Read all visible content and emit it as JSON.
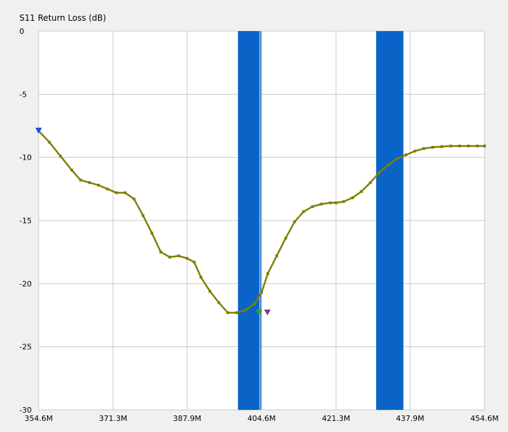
{
  "chart_data": {
    "type": "line",
    "title": "S11 Return Loss (dB)",
    "xlabel": "",
    "ylabel": "",
    "xlim": [
      354.6,
      454.6
    ],
    "ylim": [
      -30,
      0
    ],
    "x_ticks": [
      354.6,
      371.3,
      387.9,
      404.6,
      421.3,
      437.9,
      454.6
    ],
    "x_tick_labels": [
      "354.6M",
      "371.3M",
      "387.9M",
      "404.6M",
      "421.3M",
      "437.9M",
      "454.6M"
    ],
    "y_ticks": [
      0,
      -5,
      -10,
      -15,
      -20,
      -25,
      -30
    ],
    "y_tick_labels": [
      "0",
      "-5",
      "-10",
      "-15",
      "-20",
      "-25",
      "-30"
    ],
    "grid": true,
    "bands": [
      {
        "from": 399.3,
        "to": 404.5,
        "color": "#0a64c8"
      },
      {
        "from": 405.3,
        "to": 404.6,
        "color": "#0a64c8"
      },
      {
        "from": 430.3,
        "to": 436.4,
        "color": "#0a64c8"
      }
    ],
    "band_ranges": [
      [
        399.3,
        404.5
      ],
      [
        430.3,
        436.4
      ]
    ],
    "series": [
      {
        "color": "#7f7f00",
        "x": [
          354.6,
          357.0,
          359.5,
          362.0,
          364.0,
          366.0,
          368.0,
          370.0,
          372.0,
          374.0,
          376.0,
          378.0,
          380.0,
          382.0,
          384.0,
          386.0,
          387.9,
          389.5,
          391.0,
          393.0,
          395.0,
          397.0,
          399.0,
          401.0,
          403.0,
          404.6,
          406.0,
          408.0,
          410.0,
          412.0,
          414.0,
          416.0,
          418.0,
          420.0,
          421.3,
          423.0,
          425.0,
          427.0,
          429.0,
          431.0,
          433.0,
          435.0,
          437.0,
          439.0,
          441.0,
          443.0,
          445.0,
          447.0,
          449.0,
          451.0,
          453.0,
          454.6
        ],
        "y": [
          -7.9,
          -8.8,
          -9.9,
          -11.0,
          -11.8,
          -12.0,
          -12.2,
          -12.5,
          -12.8,
          -12.8,
          -13.3,
          -14.6,
          -16.0,
          -17.5,
          -17.9,
          -17.8,
          -18.0,
          -18.3,
          -19.5,
          -20.6,
          -21.5,
          -22.3,
          -22.3,
          -22.1,
          -21.6,
          -20.7,
          -19.2,
          -17.8,
          -16.4,
          -15.1,
          -14.3,
          -13.9,
          -13.7,
          -13.6,
          -13.6,
          -13.5,
          -13.2,
          -12.7,
          -12.0,
          -11.2,
          -10.6,
          -10.1,
          -9.8,
          -9.5,
          -9.3,
          -9.2,
          -9.15,
          -9.1,
          -9.1,
          -9.1,
          -9.1,
          -9.1
        ]
      }
    ],
    "markers": [
      {
        "x": 354.6,
        "y": -7.9,
        "color": "#1f4fd6"
      },
      {
        "x": 404.0,
        "y": -22.3,
        "color": "#2ca02c"
      },
      {
        "x": 405.9,
        "y": -22.3,
        "color": "#7a3f9e"
      }
    ]
  }
}
